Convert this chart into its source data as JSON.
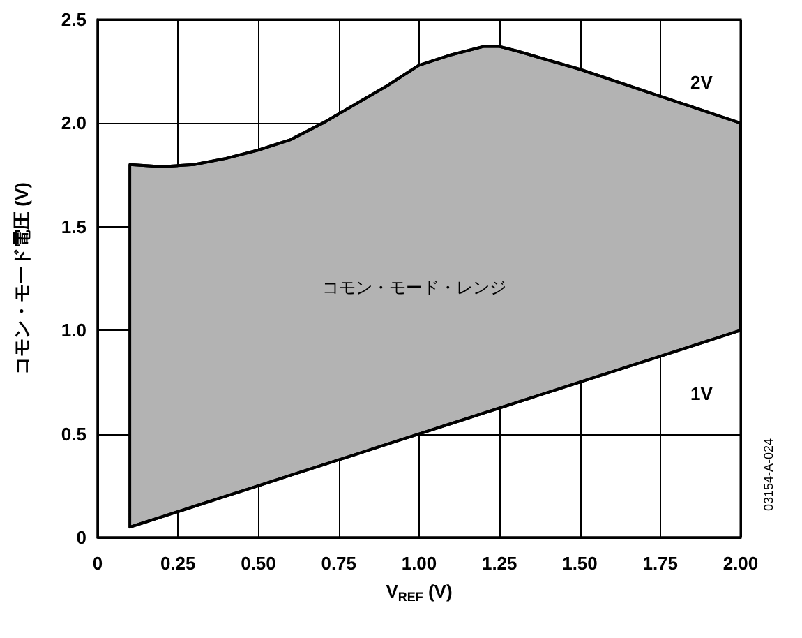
{
  "chart_data": {
    "type": "area",
    "xlabel": "V$_{REF}$ (V)",
    "ylabel": "コモン・モード電圧 (V)",
    "x": [
      0.1,
      0.15,
      0.2,
      0.3,
      0.4,
      0.5,
      0.6,
      0.7,
      0.8,
      0.9,
      1.0,
      1.1,
      1.2,
      1.25,
      1.3,
      1.5,
      1.75,
      2.0
    ],
    "series": [
      {
        "type": "line",
        "color": "#000000",
        "values": [
          0.05,
          0.075,
          0.1,
          0.15,
          0.2,
          0.25,
          0.3,
          0.35,
          0.4,
          0.45,
          0.5,
          0.55,
          0.6,
          0.625,
          0.65,
          0.75,
          0.875,
          1.0
        ]
      },
      {
        "color": "#b3b3b3",
        "values": [
          1.8,
          1.795,
          1.79,
          1.8,
          1.83,
          1.87,
          1.92,
          2.0,
          2.09,
          2.18,
          2.28,
          2.33,
          2.37,
          2.37,
          2.35,
          2.26,
          2.13,
          2.0
        ]
      }
    ],
    "xlim": [
      0,
      2
    ],
    "ylim": [
      0,
      2.5
    ],
    "xticks": [
      0,
      {
        "value": 0.25,
        "label": "0.25"
      },
      {
        "value": 0.5,
        "label": "0.50"
      },
      {
        "value": 0.75,
        "label": "0.75"
      },
      {
        "value": 1,
        "label": "1.00"
      },
      {
        "value": 1.25,
        "label": "1.25"
      },
      {
        "value": 1.5,
        "label": "1.50"
      },
      {
        "value": 1.75,
        "label": "1.75"
      },
      {
        "value": 2,
        "label": "2.00"
      }
    ],
    "yticks": [
      0,
      0.5,
      {
        "value": 1,
        "label": "1.0"
      },
      1.5,
      {
        "value": 2,
        "label": "2.0"
      },
      2.5
    ],
    "grid": true,
    "annotations": [
      "2V",
      "1V",
      "コモン・モード・レンジ",
      "03154-A-024"
    ]
  }
}
